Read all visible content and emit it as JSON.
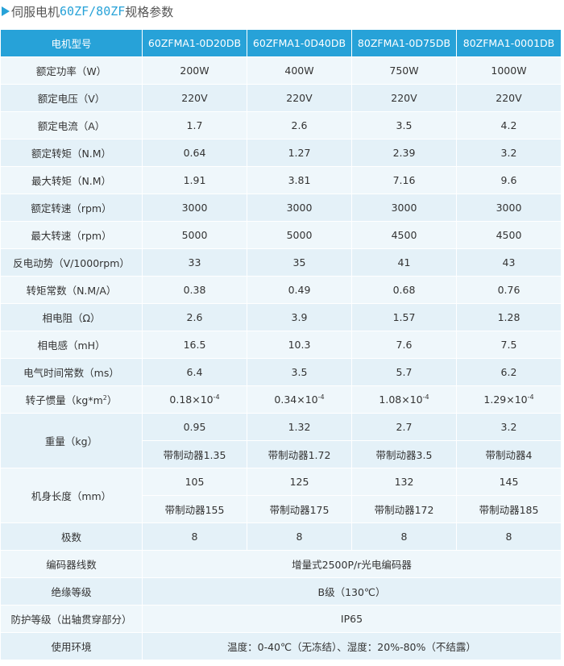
{
  "title": {
    "prefix": "伺服电机",
    "model": "60ZF/80ZF",
    "suffix": "规格参数"
  },
  "table": {
    "header": [
      "电机型号",
      "60ZFMA1-0D20DB",
      "60ZFMA1-0D40DB",
      "80ZFMA1-0D75DB",
      "80ZFMA1-0001DB"
    ],
    "rows": [
      [
        "额定功率（W）",
        "200W",
        "400W",
        "750W",
        "1000W"
      ],
      [
        "额定电压（V）",
        "220V",
        "220V",
        "220V",
        "220V"
      ],
      [
        "额定电流（A）",
        "1.7",
        "2.6",
        "3.5",
        "4.2"
      ],
      [
        "额定转矩（N.M）",
        "0.64",
        "1.27",
        "2.39",
        "3.2"
      ],
      [
        "最大转矩（N.M）",
        "1.91",
        "3.81",
        "7.16",
        "9.6"
      ],
      [
        "额定转速（rpm）",
        "3000",
        "3000",
        "3000",
        "3000"
      ],
      [
        "最大转速（rpm）",
        "5000",
        "5000",
        "4500",
        "4500"
      ],
      [
        "反电动势（V/1000rpm）",
        "33",
        "35",
        "41",
        "43"
      ],
      [
        "转矩常数（N.M/A）",
        "0.38",
        "0.49",
        "0.68",
        "0.76"
      ],
      [
        "相电阻（Ω）",
        "2.6",
        "3.9",
        "1.57",
        "1.28"
      ],
      [
        "相电感（mH）",
        "16.5",
        "10.3",
        "7.6",
        "7.5"
      ],
      [
        "电气时间常数（ms）",
        "6.4",
        "3.5",
        "5.7",
        "6.2"
      ]
    ],
    "inertia": {
      "label": {
        "base": "转子惯量（kg*m",
        "exp": "2",
        "end": "）"
      },
      "values": [
        {
          "base": "0.18×10",
          "exp": "-4"
        },
        {
          "base": "0.34×10",
          "exp": "-4"
        },
        {
          "base": "1.08×10",
          "exp": "-4"
        },
        {
          "base": "1.29×10",
          "exp": "-4"
        }
      ]
    },
    "split_rows": [
      {
        "label": "重量（kg）",
        "values": [
          "0.95",
          "1.32",
          "2.7",
          "3.2"
        ],
        "brake": [
          "带制动器1.35",
          "带制动器1.72",
          "带制动器3.5",
          "带制动器4"
        ]
      },
      {
        "label": "机身长度（mm）",
        "values": [
          "105",
          "125",
          "132",
          "145"
        ],
        "brake": [
          "带制动器155",
          "带制动器175",
          "带制动器172",
          "带制动器185"
        ]
      }
    ],
    "poles": [
      "极数",
      "8",
      "8",
      "8",
      "8"
    ],
    "shared_rows": [
      [
        "编码器线数",
        "增量式2500P/r光电编码器"
      ],
      [
        "绝缘等级",
        "B级（130℃）"
      ],
      [
        "防护等级（出轴贯穿部分）",
        "IP65"
      ],
      [
        "使用环境",
        "温度：0-40℃（无冻结）、湿度：20%-80%（不结露）"
      ]
    ]
  }
}
